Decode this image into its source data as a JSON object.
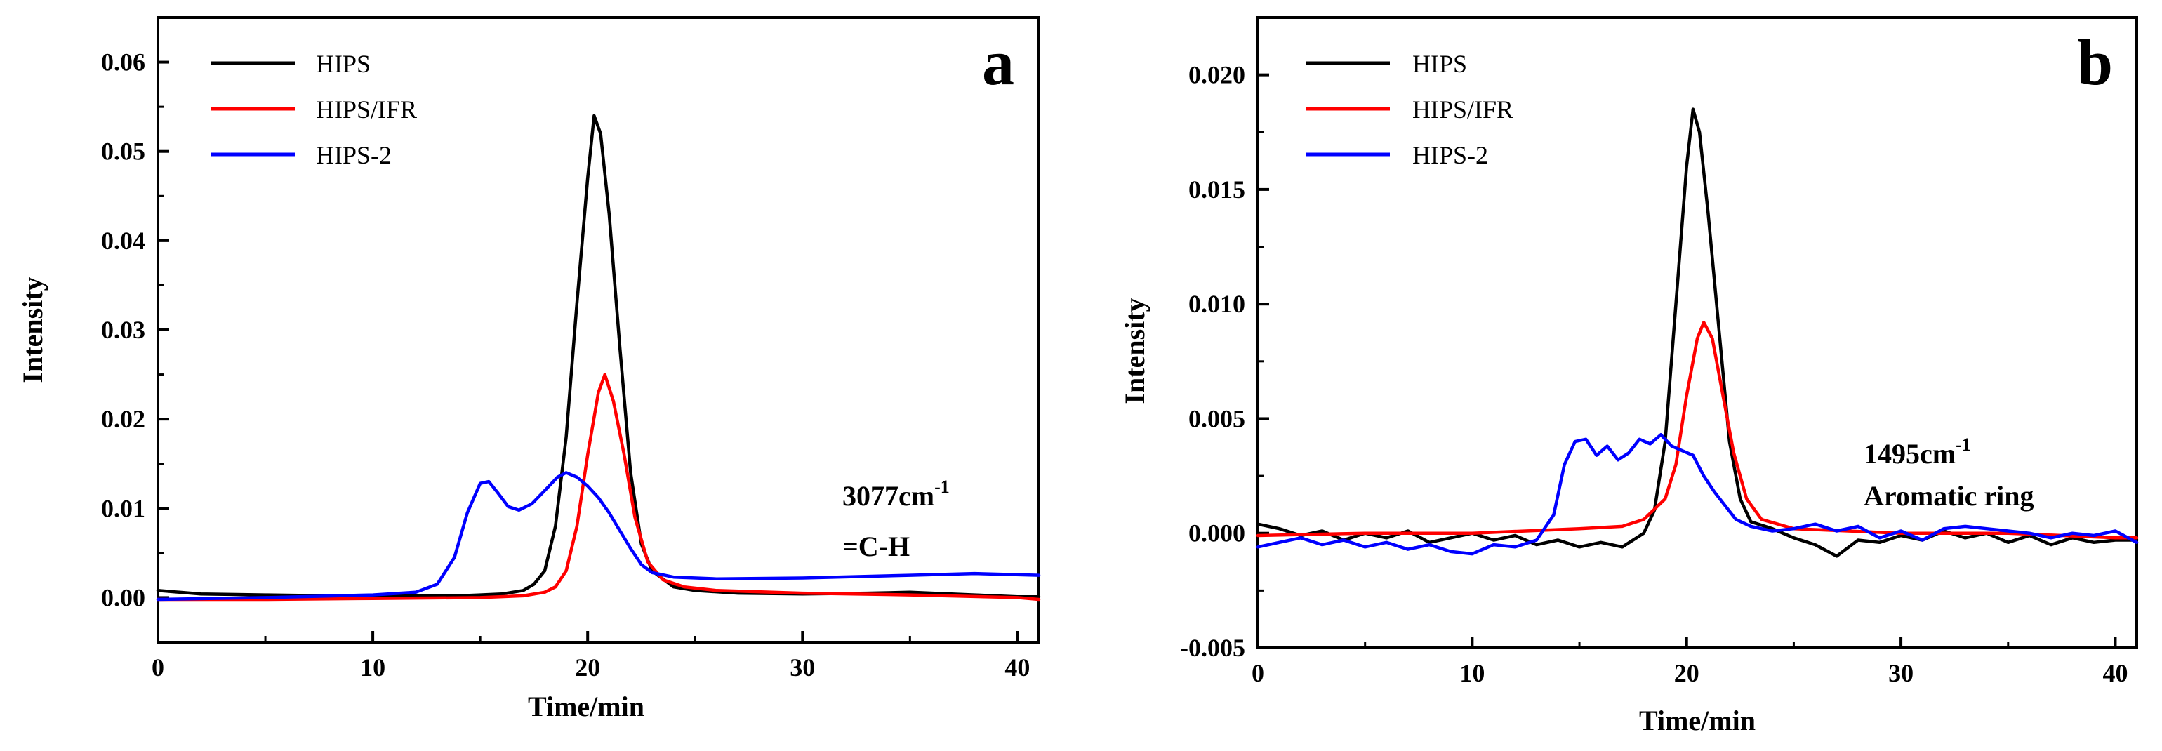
{
  "chart_data": [
    {
      "type": "line",
      "panel_label": "a",
      "xlabel": "Time/min",
      "ylabel": "Intensity",
      "xlim": [
        0,
        41
      ],
      "ylim": [
        -0.005,
        0.065
      ],
      "x_ticks": [
        "0",
        "10",
        "20",
        "30",
        "40"
      ],
      "y_ticks": [
        "0.00",
        "0.01",
        "0.02",
        "0.03",
        "0.04",
        "0.05",
        "0.06"
      ],
      "legend_position": "top-left",
      "annotation": {
        "main": "3077cm",
        "sup": "-1",
        "line2": "=C-H"
      },
      "series": [
        {
          "name": "HIPS",
          "color": "#000000",
          "x": [
            0,
            2,
            5,
            8,
            10,
            12,
            14,
            15,
            16,
            17,
            17.5,
            18,
            18.5,
            19,
            19.5,
            20,
            20.3,
            20.6,
            21,
            21.5,
            22,
            22.5,
            23,
            24,
            25,
            27,
            30,
            33,
            35,
            38,
            40,
            41
          ],
          "y": [
            0.0008,
            0.0004,
            0.0003,
            0.0002,
            0.0002,
            0.0002,
            0.0002,
            0.0003,
            0.0004,
            0.0008,
            0.0015,
            0.003,
            0.008,
            0.018,
            0.033,
            0.047,
            0.054,
            0.052,
            0.043,
            0.028,
            0.014,
            0.006,
            0.003,
            0.0012,
            0.0008,
            0.0005,
            0.0004,
            0.0005,
            0.0006,
            0.0003,
            0.0001,
            0.0001
          ]
        },
        {
          "name": "HIPS/IFR",
          "color": "#ff0000",
          "x": [
            0,
            5,
            10,
            15,
            17,
            18,
            18.5,
            19,
            19.5,
            20,
            20.5,
            20.8,
            21.2,
            21.7,
            22.2,
            22.8,
            23.5,
            24.5,
            26,
            30,
            35,
            40,
            41
          ],
          "y": [
            -0.0002,
            -0.0002,
            -0.0001,
            0.0,
            0.0002,
            0.0006,
            0.0012,
            0.003,
            0.008,
            0.016,
            0.023,
            0.025,
            0.022,
            0.016,
            0.009,
            0.004,
            0.002,
            0.0012,
            0.0008,
            0.0005,
            0.0003,
            0.0,
            -0.0002
          ]
        },
        {
          "name": "HIPS-2",
          "color": "#0000ff",
          "x": [
            0,
            5,
            10,
            12,
            13,
            13.8,
            14.4,
            15,
            15.4,
            15.8,
            16.3,
            16.8,
            17.4,
            18,
            18.6,
            19,
            19.5,
            20,
            20.5,
            21,
            21.5,
            22,
            22.5,
            23,
            24,
            26,
            30,
            35,
            38,
            41
          ],
          "y": [
            -0.0002,
            0.0,
            0.0003,
            0.0006,
            0.0015,
            0.0045,
            0.0095,
            0.0128,
            0.013,
            0.0118,
            0.0102,
            0.0098,
            0.0105,
            0.012,
            0.0135,
            0.014,
            0.0135,
            0.0125,
            0.0112,
            0.0095,
            0.0075,
            0.0055,
            0.0037,
            0.0028,
            0.0023,
            0.0021,
            0.0022,
            0.0025,
            0.0027,
            0.0025
          ]
        }
      ]
    },
    {
      "type": "line",
      "panel_label": "b",
      "xlabel": "Time/min",
      "ylabel": "Intensity",
      "xlim": [
        0,
        41
      ],
      "ylim": [
        -0.005,
        0.0225
      ],
      "x_ticks": [
        "0",
        "10",
        "20",
        "30",
        "40"
      ],
      "y_ticks": [
        "-0.005",
        "0.000",
        "0.005",
        "0.010",
        "0.015",
        "0.020"
      ],
      "legend_position": "top-left",
      "annotation": {
        "main": "1495cm",
        "sup": "-1",
        "line2": "Aromatic ring"
      },
      "series": [
        {
          "name": "HIPS",
          "color": "#000000",
          "x": [
            0,
            1,
            2,
            3,
            4,
            5,
            6,
            7,
            8,
            9,
            10,
            11,
            12,
            13,
            14,
            15,
            16,
            17,
            18,
            18.5,
            19,
            19.5,
            20,
            20.3,
            20.6,
            21,
            21.5,
            22,
            22.5,
            23,
            24,
            25,
            26,
            27,
            28,
            29,
            30,
            31,
            32,
            33,
            34,
            35,
            36,
            37,
            38,
            39,
            40,
            41
          ],
          "y": [
            0.0004,
            0.0002,
            -0.0001,
            0.0001,
            -0.0003,
            0.0,
            -0.0002,
            0.0001,
            -0.0004,
            -0.0002,
            0.0,
            -0.0003,
            -0.0001,
            -0.0005,
            -0.0003,
            -0.0006,
            -0.0004,
            -0.0006,
            0.0,
            0.001,
            0.004,
            0.01,
            0.016,
            0.0185,
            0.0175,
            0.014,
            0.009,
            0.004,
            0.0015,
            0.0005,
            0.0002,
            -0.0002,
            -0.0005,
            -0.001,
            -0.0003,
            -0.0004,
            -0.0001,
            -0.0003,
            0.0001,
            -0.0002,
            0.0,
            -0.0004,
            -0.0001,
            -0.0005,
            -0.0002,
            -0.0004,
            -0.0003,
            -0.0003
          ]
        },
        {
          "name": "HIPS/IFR",
          "color": "#ff0000",
          "x": [
            0,
            5,
            10,
            15,
            17,
            18,
            19,
            19.5,
            20,
            20.5,
            20.8,
            21.2,
            21.7,
            22.2,
            22.8,
            23.5,
            25,
            30,
            35,
            40,
            41
          ],
          "y": [
            -0.0001,
            0.0,
            0.0,
            0.0002,
            0.0003,
            0.0006,
            0.0015,
            0.003,
            0.006,
            0.0085,
            0.0092,
            0.0085,
            0.006,
            0.0035,
            0.0015,
            0.0006,
            0.0002,
            0.0,
            0.0,
            -0.0002,
            -0.0002
          ]
        },
        {
          "name": "HIPS-2",
          "color": "#0000ff",
          "x": [
            0,
            1,
            2,
            3,
            4,
            5,
            6,
            7,
            8,
            9,
            10,
            11,
            12,
            13,
            13.8,
            14.3,
            14.8,
            15.3,
            15.8,
            16.3,
            16.8,
            17.3,
            17.8,
            18.3,
            18.8,
            19.3,
            19.8,
            20.3,
            20.8,
            21.3,
            21.8,
            22.3,
            23,
            24,
            25,
            26,
            27,
            28,
            29,
            30,
            31,
            32,
            33,
            34,
            35,
            36,
            37,
            38,
            39,
            40,
            41
          ],
          "y": [
            -0.0006,
            -0.0004,
            -0.0002,
            -0.0005,
            -0.0003,
            -0.0006,
            -0.0004,
            -0.0007,
            -0.0005,
            -0.0008,
            -0.0009,
            -0.0005,
            -0.0006,
            -0.0003,
            0.0008,
            0.003,
            0.004,
            0.0041,
            0.0034,
            0.0038,
            0.0032,
            0.0035,
            0.0041,
            0.0039,
            0.0043,
            0.0038,
            0.0036,
            0.0034,
            0.0025,
            0.0018,
            0.0012,
            0.0006,
            0.0003,
            0.0001,
            0.0002,
            0.0004,
            0.0001,
            0.0003,
            -0.0002,
            0.0001,
            -0.0003,
            0.0002,
            0.0003,
            0.0002,
            0.0001,
            0.0,
            -0.0002,
            0.0,
            -0.0001,
            0.0001,
            -0.0004
          ]
        }
      ]
    }
  ]
}
